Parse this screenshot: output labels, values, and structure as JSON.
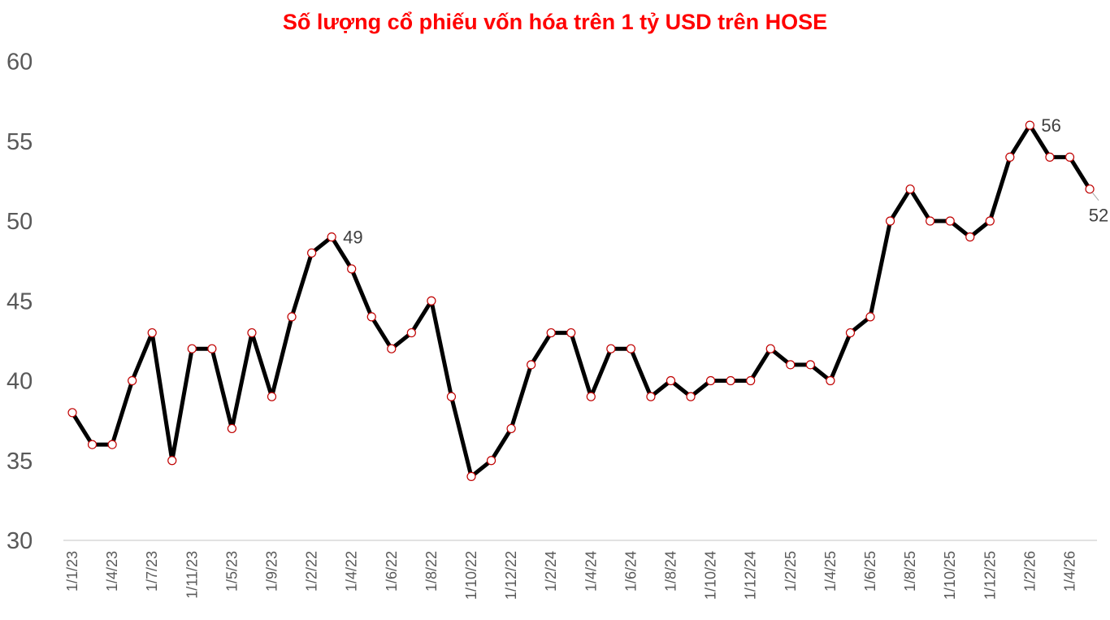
{
  "chart_data": {
    "type": "line",
    "title": "Số lượng cổ phiếu vốn hóa trên 1 tỷ USD trên HOSE",
    "xlabel": "",
    "ylabel": "",
    "ylim": [
      30,
      60
    ],
    "yticks": [
      "30",
      "35",
      "40",
      "45",
      "50",
      "55",
      "60"
    ],
    "grid": false,
    "x_tick_labels": [
      "1/1/23",
      "1/4/23",
      "1/7/23",
      "1/11/23",
      "1/5/23",
      "1/9/23",
      "1/2/22",
      "1/4/22",
      "1/6/22",
      "1/8/22",
      "1/10/22",
      "1/12/22",
      "1/2/24",
      "1/4/24",
      "1/6/24",
      "1/8/24",
      "1/10/24",
      "1/12/24",
      "1/2/25",
      "1/4/25",
      "1/6/25",
      "1/8/25",
      "1/10/25",
      "1/12/25",
      "1/2/26",
      "1/4/26"
    ],
    "series": [
      {
        "values": [
          38,
          36,
          36,
          40,
          43,
          35,
          42,
          42,
          37,
          43,
          39,
          44,
          48,
          49,
          47,
          44,
          42,
          43,
          45,
          39,
          34,
          35,
          37,
          41,
          43,
          43,
          39,
          42,
          42,
          39,
          40,
          39,
          40,
          40,
          40,
          42,
          41,
          41,
          40,
          43,
          44,
          50,
          52,
          50,
          50,
          49,
          50,
          54,
          56,
          54,
          54,
          52
        ]
      }
    ],
    "data_labels": [
      {
        "index": 13,
        "text": "49"
      },
      {
        "index": 48,
        "text": "56"
      },
      {
        "index": 51,
        "text": "52"
      }
    ],
    "colors": {
      "title": "#ff0000",
      "line": "#000000",
      "marker_stroke": "#c00000",
      "marker_fill": "#ffffff",
      "axis": "#d9d9d9",
      "text": "#595959"
    }
  }
}
